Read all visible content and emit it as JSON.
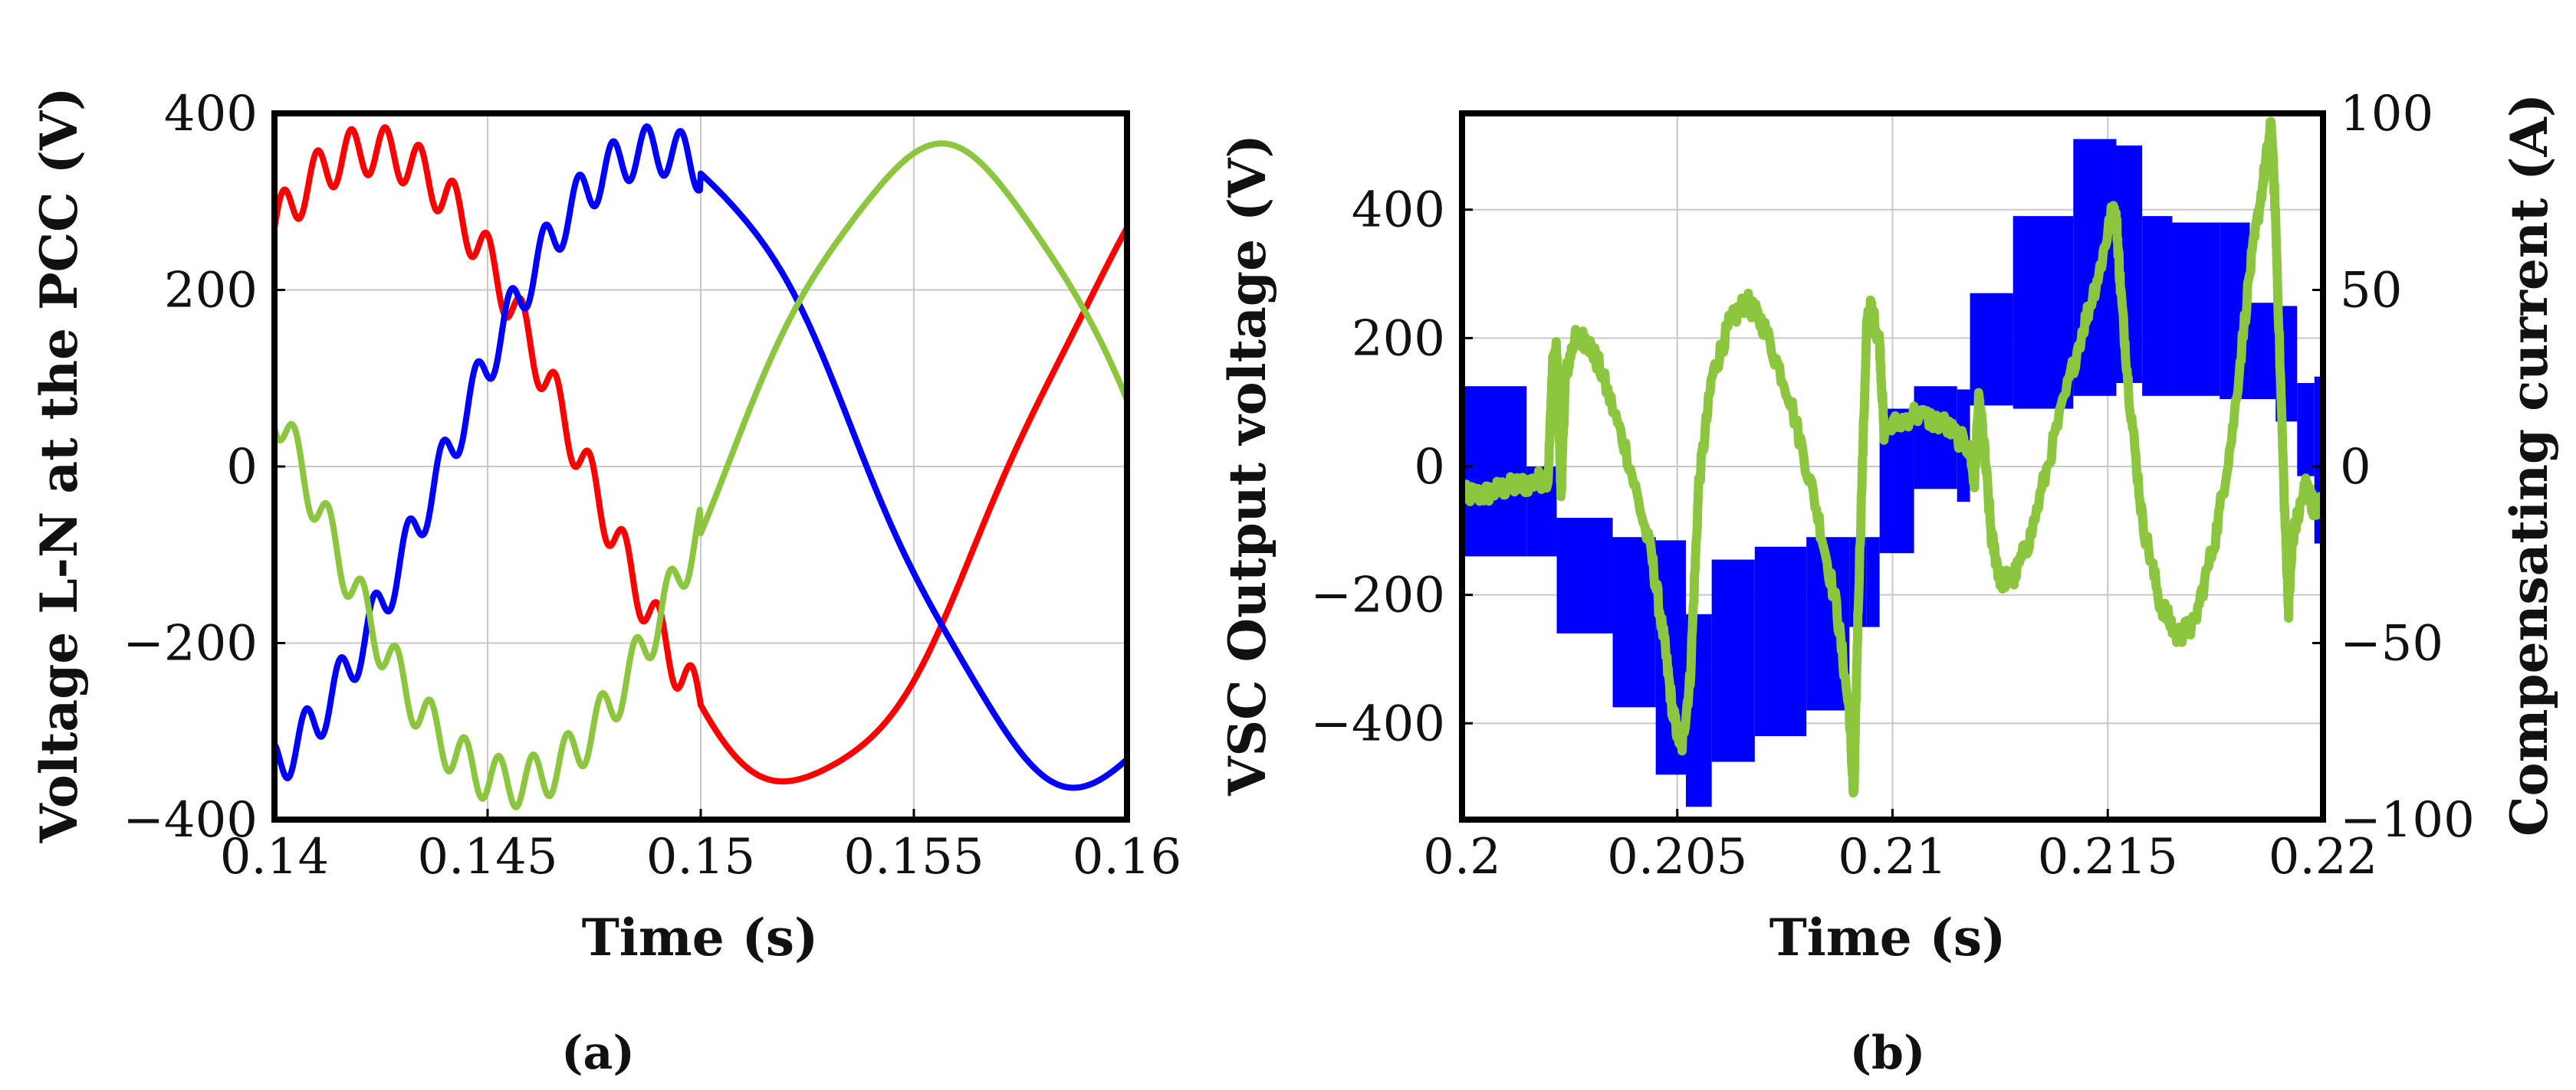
{
  "chart_data": [
    {
      "type": "line",
      "panel_label": "(a)",
      "xlabel": "Time (s)",
      "ylabel": "Voltage L-N at the PCC (V)",
      "xlim": [
        0.14,
        0.16
      ],
      "ylim": [
        -400,
        400
      ],
      "xticks": [
        0.14,
        0.145,
        0.15,
        0.155,
        0.16
      ],
      "xtick_labels": [
        "0.14",
        "0.145",
        "0.15",
        "0.155",
        "0.16"
      ],
      "yticks": [
        -400,
        -200,
        0,
        200,
        400
      ],
      "ytick_labels": [
        "−400",
        "−200",
        "0",
        "200",
        "400"
      ],
      "grid": true,
      "series": [
        {
          "color": "#ff0000",
          "phase_deg": 49,
          "amplitude": 358,
          "frequency_hz": 50,
          "ripple_until_s": 0.15,
          "ripple_v": 28
        },
        {
          "color": "#0000ff",
          "phase_deg": -71,
          "amplitude": 358,
          "frequency_hz": 50,
          "ripple_until_s": 0.15,
          "ripple_v": 28
        },
        {
          "color": "#8cc63f",
          "phase_deg": 169,
          "amplitude": 358,
          "frequency_hz": 50,
          "ripple_until_s": 0.15,
          "ripple_v": 28
        }
      ]
    },
    {
      "type": "line",
      "panel_label": "(b)",
      "xlabel": "Time (s)",
      "ylabel": "VSC Output voltage (V)",
      "y2label": "Compensating current (A)",
      "xlim": [
        0.2,
        0.22
      ],
      "ylim": [
        -550,
        550
      ],
      "y2lim": [
        -100,
        100
      ],
      "xticks": [
        0.2,
        0.205,
        0.21,
        0.215,
        0.22
      ],
      "xtick_labels": [
        "0.2",
        "0.205",
        "0.21",
        "0.215",
        "0.22"
      ],
      "yticks": [
        -400,
        -200,
        0,
        200,
        400
      ],
      "ytick_labels": [
        "−400",
        "−200",
        "0",
        "200",
        "400"
      ],
      "y2ticks": [
        -100,
        -50,
        0,
        50,
        100
      ],
      "y2tick_labels": [
        "−100",
        "−50",
        "0",
        "50",
        "100"
      ],
      "grid": true,
      "series": [
        {
          "color": "#0000ff",
          "axis": "left",
          "style": "switched_band",
          "band": [
            [
              0.2,
              -140,
              125
            ],
            [
              0.2015,
              -140,
              0
            ],
            [
              0.2022,
              -260,
              -80
            ],
            [
              0.2035,
              -375,
              -110
            ],
            [
              0.2045,
              -480,
              -115
            ],
            [
              0.2052,
              -530,
              -230
            ],
            [
              0.2058,
              -460,
              -145
            ],
            [
              0.2068,
              -420,
              -125
            ],
            [
              0.208,
              -380,
              -110
            ],
            [
              0.209,
              -250,
              -110
            ],
            [
              0.2094,
              -250,
              -110
            ],
            [
              0.2097,
              -135,
              90
            ],
            [
              0.2105,
              -35,
              125
            ],
            [
              0.2115,
              -55,
              120
            ],
            [
              0.2118,
              95,
              270
            ],
            [
              0.2128,
              90,
              390
            ],
            [
              0.2142,
              110,
              510
            ],
            [
              0.2152,
              130,
              500
            ],
            [
              0.2158,
              110,
              390
            ],
            [
              0.2165,
              110,
              380
            ],
            [
              0.2176,
              105,
              380
            ],
            [
              0.2183,
              105,
              255
            ],
            [
              0.2189,
              70,
              250
            ],
            [
              0.2194,
              -15,
              130
            ],
            [
              0.2198,
              -120,
              140
            ],
            [
              0.22,
              -120,
              140
            ]
          ]
        },
        {
          "color": "#8cc63f",
          "axis": "right",
          "style": "noisy_line",
          "points": [
            [
              0.2,
              -8
            ],
            [
              0.2005,
              -8
            ],
            [
              0.201,
              -6
            ],
            [
              0.2015,
              -5
            ],
            [
              0.202,
              -3
            ],
            [
              0.2021,
              28
            ],
            [
              0.2022,
              33
            ],
            [
              0.2023,
              -8
            ],
            [
              0.2024,
              25
            ],
            [
              0.2026,
              36
            ],
            [
              0.2029,
              36
            ],
            [
              0.2032,
              28
            ],
            [
              0.2038,
              5
            ],
            [
              0.2044,
              -25
            ],
            [
              0.2047,
              -50
            ],
            [
              0.2049,
              -70
            ],
            [
              0.2051,
              -80
            ],
            [
              0.2053,
              -60
            ],
            [
              0.2055,
              -5
            ],
            [
              0.2058,
              25
            ],
            [
              0.2062,
              40
            ],
            [
              0.2066,
              47
            ],
            [
              0.207,
              40
            ],
            [
              0.2076,
              20
            ],
            [
              0.2082,
              -10
            ],
            [
              0.2087,
              -40
            ],
            [
              0.209,
              -70
            ],
            [
              0.2091,
              -95
            ],
            [
              0.2092,
              -40
            ],
            [
              0.2094,
              40
            ],
            [
              0.2095,
              45
            ],
            [
              0.2097,
              35
            ],
            [
              0.2098,
              10
            ],
            [
              0.2105,
              15
            ],
            [
              0.2112,
              12
            ],
            [
              0.2118,
              5
            ],
            [
              0.2119,
              -5
            ],
            [
              0.212,
              18
            ],
            [
              0.2121,
              10
            ],
            [
              0.2123,
              -20
            ],
            [
              0.2125,
              -32
            ],
            [
              0.2128,
              -32
            ],
            [
              0.2132,
              -20
            ],
            [
              0.2138,
              10
            ],
            [
              0.2144,
              38
            ],
            [
              0.2148,
              55
            ],
            [
              0.2151,
              72
            ],
            [
              0.2152,
              70
            ],
            [
              0.2153,
              50
            ],
            [
              0.2155,
              20
            ],
            [
              0.2158,
              -15
            ],
            [
              0.2162,
              -38
            ],
            [
              0.2166,
              -48
            ],
            [
              0.217,
              -45
            ],
            [
              0.2175,
              -20
            ],
            [
              0.2179,
              10
            ],
            [
              0.2183,
              55
            ],
            [
              0.2186,
              80
            ],
            [
              0.2188,
              97
            ],
            [
              0.2189,
              70
            ],
            [
              0.2191,
              -10
            ],
            [
              0.2192,
              -40
            ],
            [
              0.2193,
              -20
            ],
            [
              0.2196,
              -5
            ],
            [
              0.2198,
              -12
            ],
            [
              0.22,
              -10
            ]
          ]
        }
      ]
    }
  ]
}
